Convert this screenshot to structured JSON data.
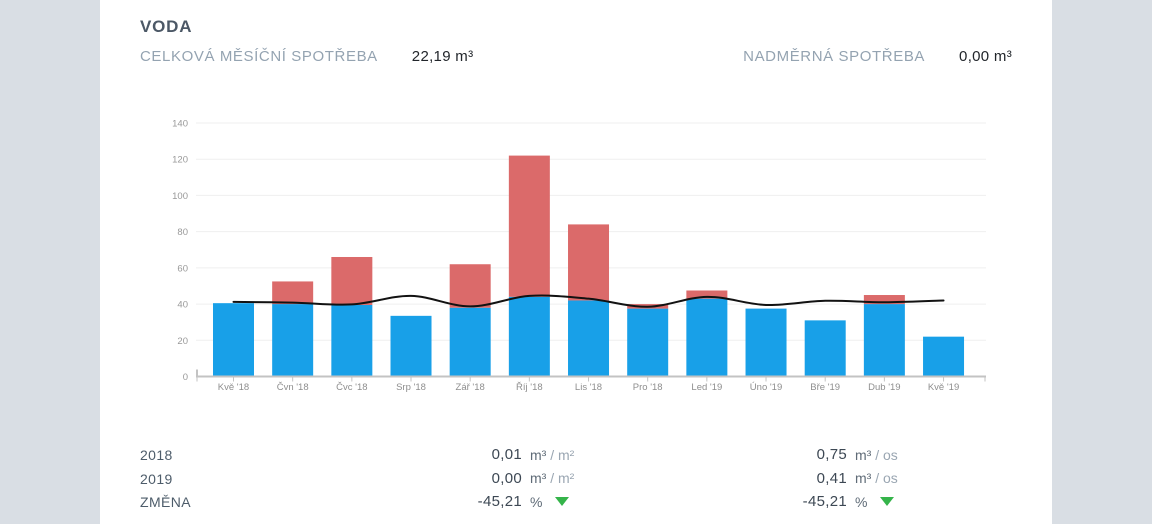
{
  "header": {
    "title": "VODA",
    "total_label": "CELKOVÁ MĚSÍČNÍ SPOTŘEBA",
    "total_value": "22,19 m³",
    "excess_label": "NADMĚRNÁ SPOTŘEBA",
    "excess_value": "0,00 m³"
  },
  "chart_data": {
    "type": "bar",
    "stacked": true,
    "title": "",
    "xlabel": "",
    "ylabel": "",
    "ylim": [
      0,
      140
    ],
    "yticks": [
      0,
      20,
      40,
      60,
      80,
      100,
      120,
      140
    ],
    "grid": true,
    "legend_position": "none",
    "categories": [
      "Kvě '18",
      "Čvn '18",
      "Čvc '18",
      "Srp '18",
      "Zář '18",
      "Říj '18",
      "Lis '18",
      "Pro '18",
      "Led '19",
      "Úno '19",
      "Bře '19",
      "Dub '19",
      "Kvě '19"
    ],
    "series": [
      {
        "name": "normal-consumption",
        "color": "#18a0e8",
        "values": [
          40.5,
          40,
          39.5,
          33.5,
          38,
          44,
          42,
          37.5,
          43,
          37.5,
          31,
          40,
          22
        ]
      },
      {
        "name": "excess-consumption",
        "color": "#db6a6a",
        "values": [
          0,
          12.5,
          26.5,
          0,
          24,
          78,
          42,
          2.5,
          4.5,
          0,
          0,
          5,
          0
        ]
      }
    ],
    "line_overlay": {
      "name": "norm-line",
      "color": "#121212",
      "values": [
        41.2,
        40.8,
        39.8,
        44.5,
        38.7,
        44.5,
        43,
        38.5,
        44,
        39.5,
        41.8,
        41,
        42
      ]
    }
  },
  "stats": {
    "rows": [
      {
        "label": "2018",
        "values": [
          {
            "num": "0,01",
            "unit_main": "m³",
            "unit_sub": "/ m²",
            "indicator": ""
          },
          {
            "num": "0,75",
            "unit_main": "m³",
            "unit_sub": "/ os",
            "indicator": ""
          }
        ]
      },
      {
        "label": "2019",
        "values": [
          {
            "num": "0,00",
            "unit_main": "m³",
            "unit_sub": "/ m²",
            "indicator": ""
          },
          {
            "num": "0,41",
            "unit_main": "m³",
            "unit_sub": "/ os",
            "indicator": ""
          }
        ]
      },
      {
        "label": "ZMĚNA",
        "values": [
          {
            "num": "-45,21",
            "unit_main": "%",
            "unit_sub": "",
            "indicator": "down"
          },
          {
            "num": "-45,21",
            "unit_main": "%",
            "unit_sub": "",
            "indicator": "down"
          }
        ]
      }
    ]
  },
  "colors": {
    "page_bg": "#d9dee4",
    "card_bg": "#ffffff",
    "bar_normal": "#18a0e8",
    "bar_excess": "#db6a6a",
    "norm_line": "#121212",
    "grid_line": "#efefef",
    "axis_line": "#c3c3c3",
    "tick_text": "#999999",
    "indicator_green": "#35b44a"
  }
}
